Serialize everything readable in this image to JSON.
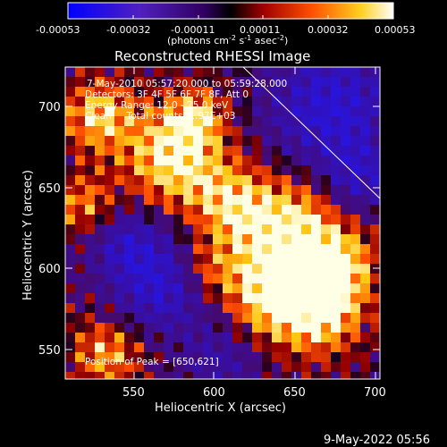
{
  "title": "Reconstructed RHESSI Image",
  "colorbar": {
    "ticks": [
      "-0.00053",
      "-0.00032",
      "-0.00011",
      "0.00011",
      "0.00032",
      "0.00053"
    ],
    "unit_main": "(photons cm",
    "unit_exp1": "-2",
    "unit_s": " s",
    "unit_exp2": "-1",
    "unit_asec": " asec",
    "unit_exp3": "-2",
    "unit_close": ")"
  },
  "info": {
    "line1": "7-May-2010 05:57:20.000 to 05:59:28.000",
    "line2": "Detectors: 3F 4F 5F 6F 7F 8F, Att 0",
    "line3": "Energy Range: 12.0 - 25.0 keV",
    "line4": "Clean     Total counts: 1.97E+03",
    "peak": "Position of Peak = [650,621]"
  },
  "axes": {
    "xlabel": "Heliocentric X (arcsec)",
    "ylabel": "Heliocentric Y (arcsec)",
    "x_ticks": [
      "550",
      "600",
      "650",
      "700"
    ],
    "y_ticks": [
      "550",
      "600",
      "650",
      "700"
    ]
  },
  "footer_date": "9-May-2022 05:56"
}
